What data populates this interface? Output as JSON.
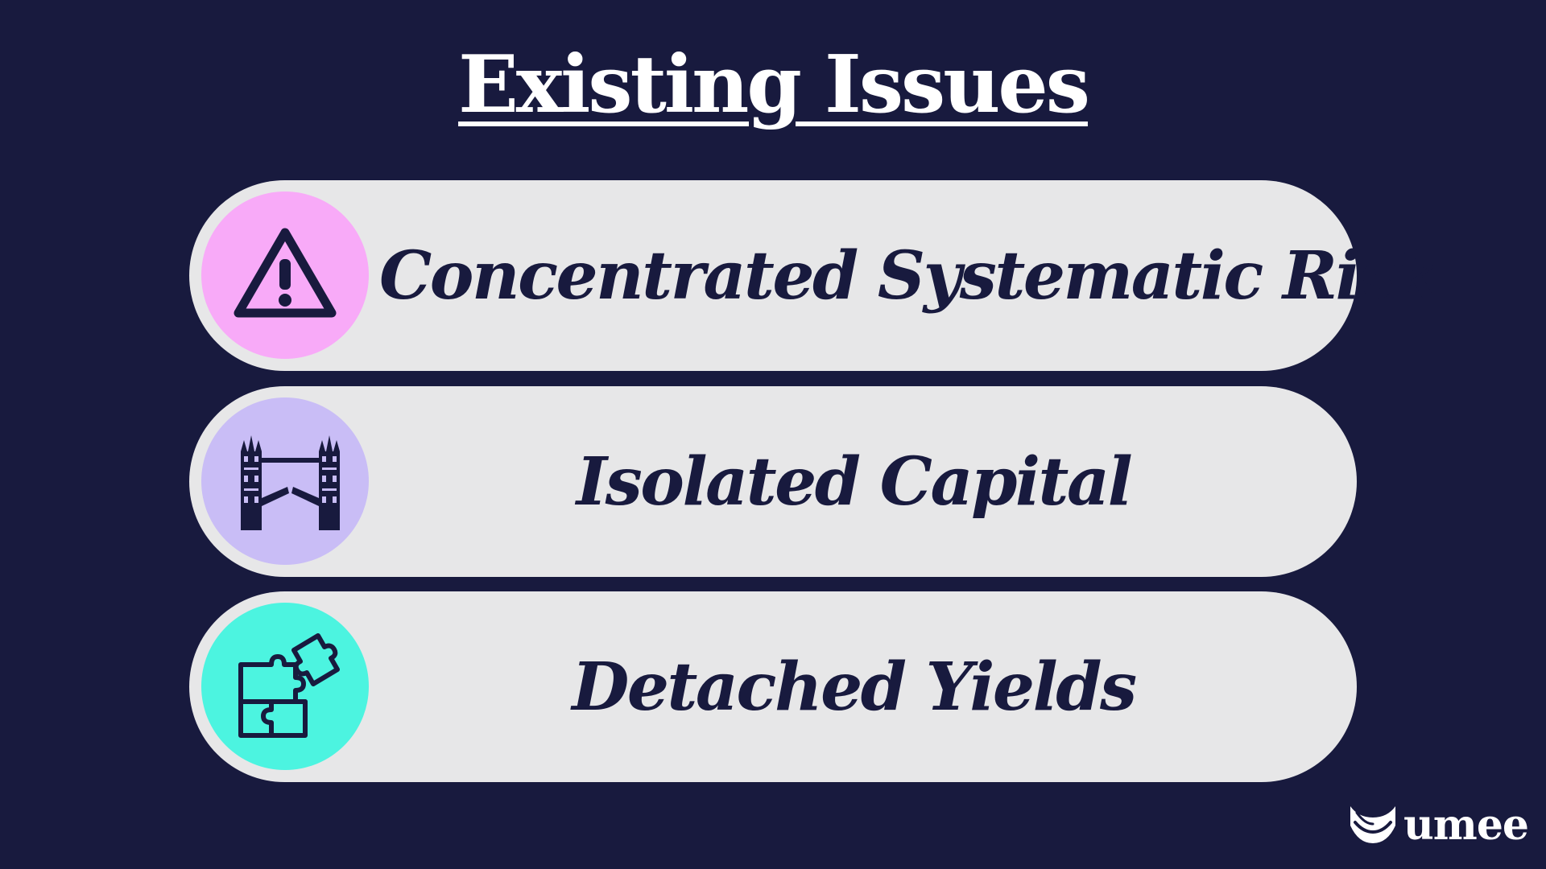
{
  "title": "Existing Issues",
  "colors": {
    "background": "#181a3e",
    "pill": "#e7e7e8",
    "text_dark": "#181a3e",
    "risk_icon_bg": "#f8aaf8",
    "capital_icon_bg": "#c9bdf6",
    "yields_icon_bg": "#4cf4e0"
  },
  "issues": [
    {
      "label": "Concentrated Systematic Risk",
      "icon": "warning-triangle-icon"
    },
    {
      "label": "Isolated Capital",
      "icon": "tower-bridge-icon"
    },
    {
      "label": "Detached Yields",
      "icon": "puzzle-pieces-icon"
    }
  ],
  "brand": {
    "name": "umee",
    "icon": "umee-wave-logo-icon"
  }
}
